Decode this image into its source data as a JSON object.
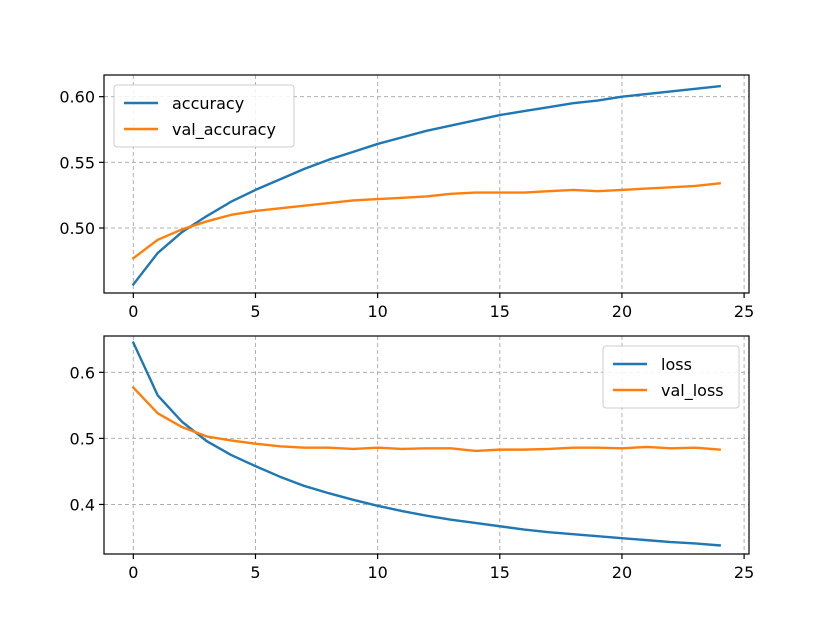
{
  "chart_data": [
    {
      "type": "line",
      "title": "",
      "xlabel": "",
      "ylabel": "",
      "xlim": [
        -1.2,
        25.2
      ],
      "ylim": [
        0.4505,
        0.6165
      ],
      "xticks": [
        0,
        5,
        10,
        15,
        20,
        25
      ],
      "xtick_labels": [
        "0",
        "5",
        "10",
        "15",
        "20",
        "25"
      ],
      "yticks": [
        0.5,
        0.55,
        0.6
      ],
      "ytick_labels": [
        "0.50",
        "0.55",
        "0.60"
      ],
      "grid": true,
      "legend_position": "top-left",
      "x": [
        0,
        1,
        2,
        3,
        4,
        5,
        6,
        7,
        8,
        9,
        10,
        11,
        12,
        13,
        14,
        15,
        16,
        17,
        18,
        19,
        20,
        21,
        22,
        23,
        24
      ],
      "series": [
        {
          "name": "accuracy",
          "color": "#1f77b4",
          "values": [
            0.457,
            0.481,
            0.497,
            0.509,
            0.52,
            0.529,
            0.537,
            0.545,
            0.552,
            0.558,
            0.564,
            0.569,
            0.574,
            0.578,
            0.582,
            0.586,
            0.589,
            0.592,
            0.595,
            0.597,
            0.6,
            0.602,
            0.604,
            0.606,
            0.608
          ]
        },
        {
          "name": "val_accuracy",
          "color": "#ff7f0e",
          "values": [
            0.477,
            0.491,
            0.499,
            0.505,
            0.51,
            0.513,
            0.515,
            0.517,
            0.519,
            0.521,
            0.522,
            0.523,
            0.524,
            0.526,
            0.527,
            0.527,
            0.527,
            0.528,
            0.529,
            0.528,
            0.529,
            0.53,
            0.531,
            0.532,
            0.534
          ]
        }
      ]
    },
    {
      "type": "line",
      "title": "",
      "xlabel": "",
      "ylabel": "",
      "xlim": [
        -1.2,
        25.2
      ],
      "ylim": [
        0.325,
        0.655
      ],
      "xticks": [
        0,
        5,
        10,
        15,
        20,
        25
      ],
      "xtick_labels": [
        "0",
        "5",
        "10",
        "15",
        "20",
        "25"
      ],
      "yticks": [
        0.4,
        0.5,
        0.6
      ],
      "ytick_labels": [
        "0.4",
        "0.5",
        "0.6"
      ],
      "grid": true,
      "legend_position": "top-right",
      "x": [
        0,
        1,
        2,
        3,
        4,
        5,
        6,
        7,
        8,
        9,
        10,
        11,
        12,
        13,
        14,
        15,
        16,
        17,
        18,
        19,
        20,
        21,
        22,
        23,
        24
      ],
      "series": [
        {
          "name": "loss",
          "color": "#1f77b4",
          "values": [
            0.645,
            0.565,
            0.525,
            0.496,
            0.475,
            0.458,
            0.442,
            0.428,
            0.417,
            0.407,
            0.398,
            0.39,
            0.383,
            0.377,
            0.372,
            0.367,
            0.362,
            0.358,
            0.355,
            0.352,
            0.349,
            0.346,
            0.343,
            0.341,
            0.338
          ]
        },
        {
          "name": "val_loss",
          "color": "#ff7f0e",
          "values": [
            0.577,
            0.538,
            0.517,
            0.503,
            0.497,
            0.492,
            0.488,
            0.486,
            0.486,
            0.484,
            0.486,
            0.484,
            0.485,
            0.485,
            0.481,
            0.483,
            0.483,
            0.484,
            0.486,
            0.486,
            0.485,
            0.487,
            0.485,
            0.486,
            0.483
          ]
        }
      ]
    }
  ]
}
